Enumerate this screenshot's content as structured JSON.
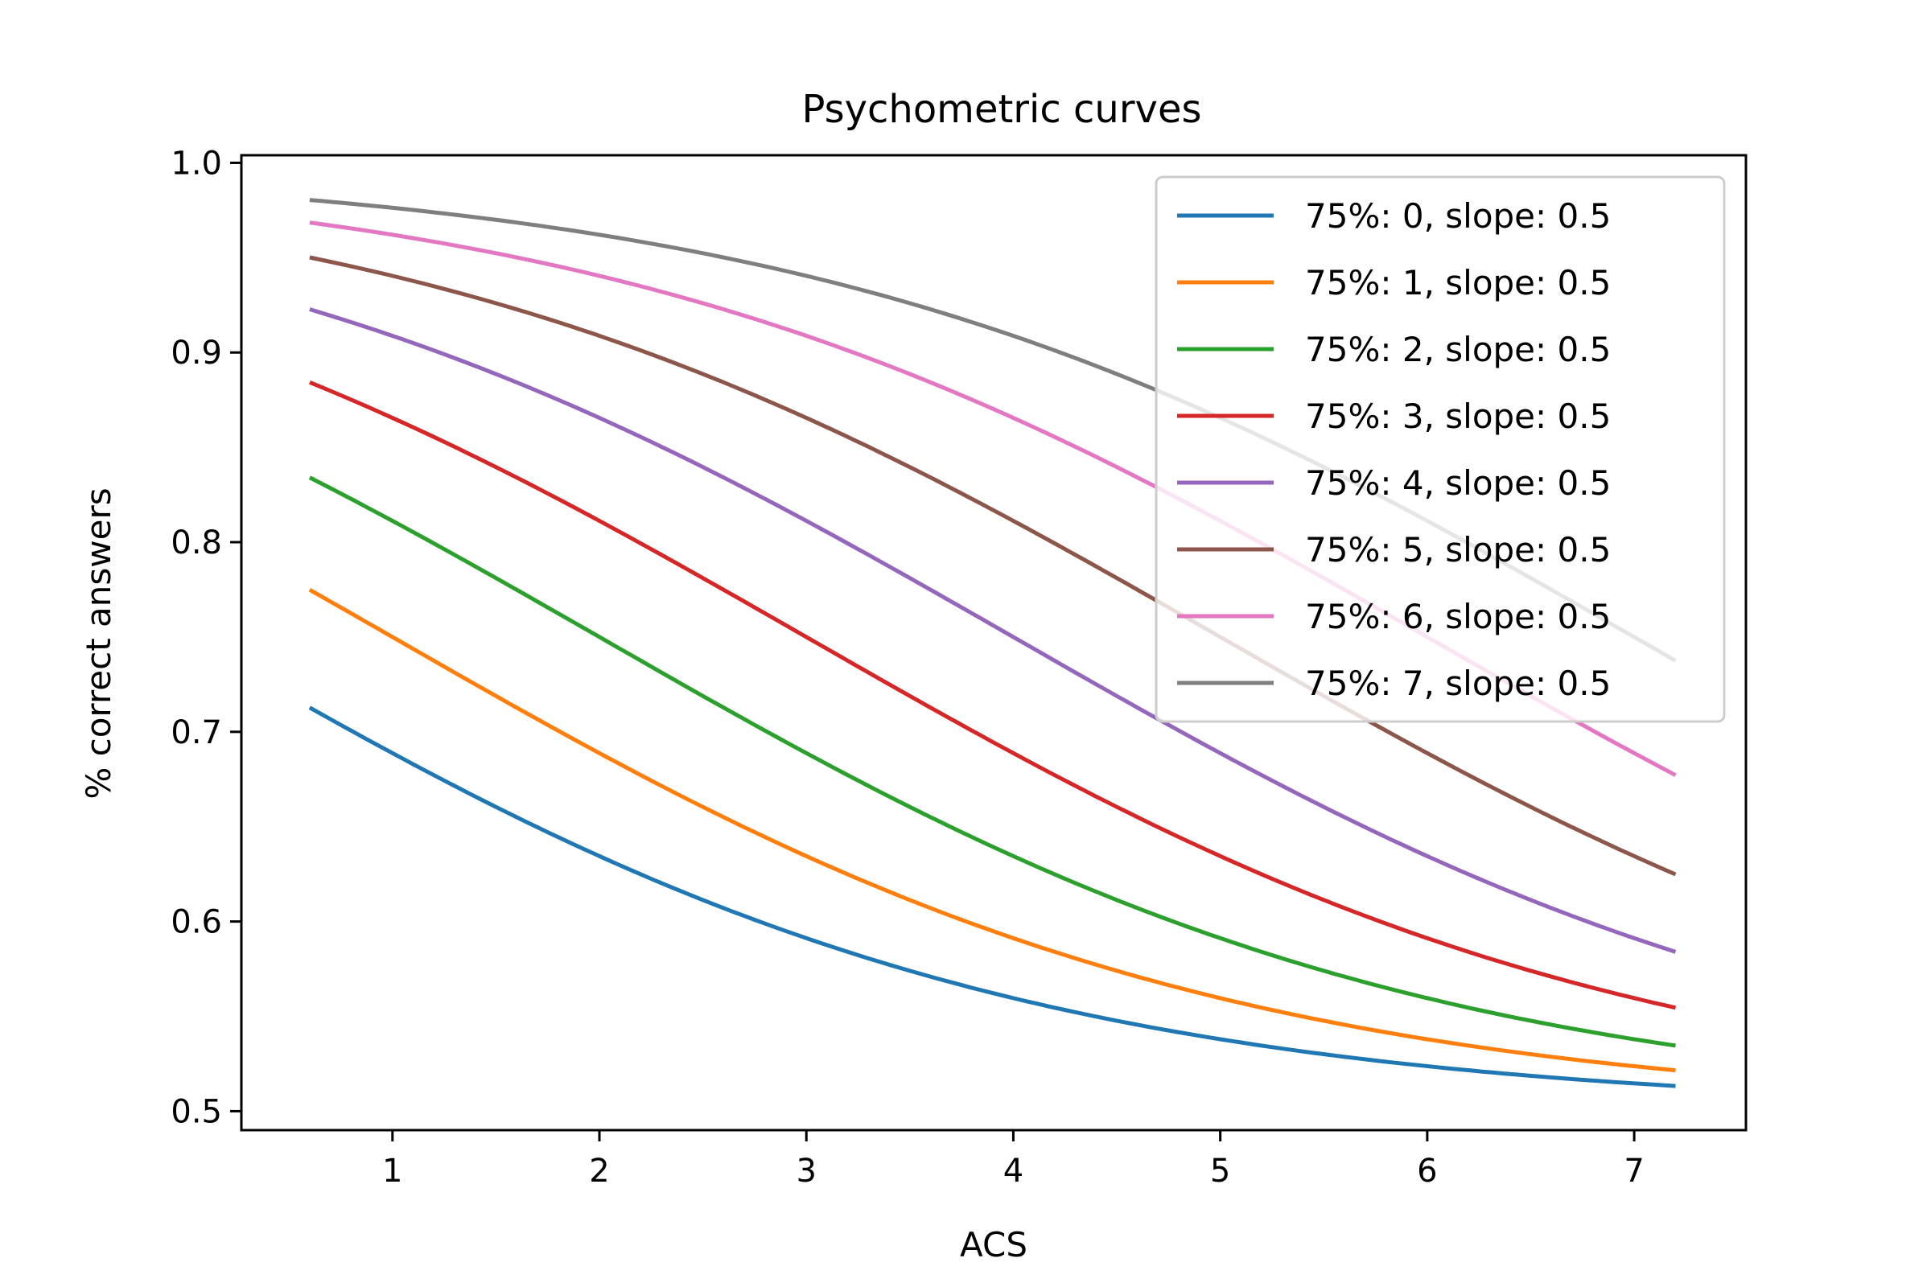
{
  "chart_data": {
    "type": "line",
    "title": "Psychometric curves",
    "xlabel": "ACS",
    "ylabel": "% correct answers",
    "xlim": [
      0.27,
      7.54
    ],
    "ylim": [
      0.49,
      1.004
    ],
    "xticks": [
      1,
      2,
      3,
      4,
      5,
      6,
      7
    ],
    "yticks": [
      0.5,
      0.6,
      0.7,
      0.8,
      0.9,
      1.0
    ],
    "ytick_labels": [
      "0.5",
      "0.6",
      "0.7",
      "0.8",
      "0.9",
      "1.0"
    ],
    "grid": false,
    "legend_position": "upper right",
    "x_range": [
      0.6,
      7.2
    ],
    "model": "0.5 + 0.5 / (1 + exp(slope * (x - threshold75)))",
    "series": [
      {
        "name": "75%: 0, slope: 0.5",
        "threshold75": 0,
        "slope": 0.5,
        "color": "#1f77b4",
        "endpoints": [
          0.713,
          0.513
        ]
      },
      {
        "name": "75%: 1, slope: 0.5",
        "threshold75": 1,
        "slope": 0.5,
        "color": "#ff7f0e",
        "endpoints": [
          0.775,
          0.521
        ]
      },
      {
        "name": "75%: 2, slope: 0.5",
        "threshold75": 2,
        "slope": 0.5,
        "color": "#2ca02c",
        "endpoints": [
          0.835,
          0.534
        ]
      },
      {
        "name": "75%: 3, slope: 0.5",
        "threshold75": 3,
        "slope": 0.5,
        "color": "#d62728",
        "endpoints": [
          0.885,
          0.554
        ]
      },
      {
        "name": "75%: 4, slope: 0.5",
        "threshold75": 4,
        "slope": 0.5,
        "color": "#9467bd",
        "endpoints": [
          0.923,
          0.583
        ]
      },
      {
        "name": "75%: 5, slope: 0.5",
        "threshold75": 5,
        "slope": 0.5,
        "color": "#8c564b",
        "endpoints": [
          0.95,
          0.624
        ]
      },
      {
        "name": "75%: 6, slope: 0.5",
        "threshold75": 6,
        "slope": 0.5,
        "color": "#e377c2",
        "endpoints": [
          0.969,
          0.676
        ]
      },
      {
        "name": "75%: 7, slope: 0.5",
        "threshold75": 7,
        "slope": 0.5,
        "color": "#7f7f7f",
        "endpoints": [
          0.98,
          0.736
        ]
      }
    ]
  }
}
